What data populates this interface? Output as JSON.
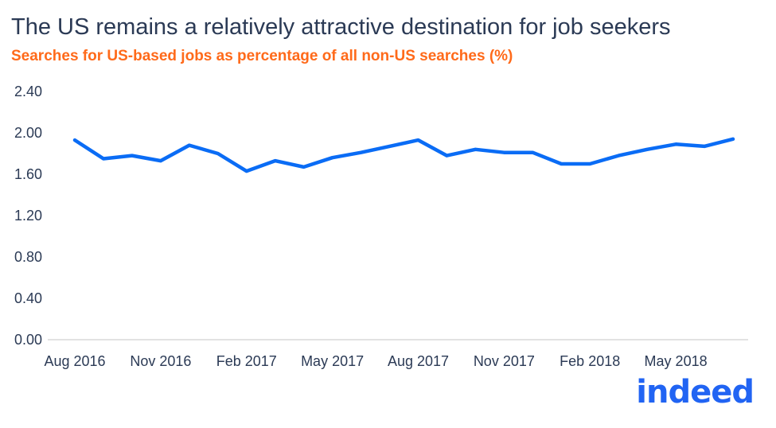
{
  "chart_data": {
    "type": "line",
    "title": "The US remains a relatively attractive destination for job seekers",
    "subtitle": "Searches for US-based jobs as percentage of all non-US searches (%)",
    "xlabel": "",
    "ylabel": "",
    "ylim": [
      0,
      2.4
    ],
    "yticks": [
      "0.00",
      "0.40",
      "0.80",
      "1.20",
      "1.60",
      "2.00",
      "2.40"
    ],
    "x": [
      "Aug 2016",
      "Sep 2016",
      "Oct 2016",
      "Nov 2016",
      "Dec 2016",
      "Jan 2017",
      "Feb 2017",
      "Mar 2017",
      "Apr 2017",
      "May 2017",
      "Jun 2017",
      "Jul 2017",
      "Aug 2017",
      "Sep 2017",
      "Oct 2017",
      "Nov 2017",
      "Dec 2017",
      "Jan 2018",
      "Feb 2018",
      "Mar 2018",
      "Apr 2018",
      "May 2018",
      "Jun 2018",
      "Jul 2018"
    ],
    "xtick_labels": [
      "Aug 2016",
      "Nov 2016",
      "Feb 2017",
      "May 2017",
      "Aug 2017",
      "Nov 2017",
      "Feb 2018",
      "May 2018"
    ],
    "series": [
      {
        "values": [
          1.93,
          1.75,
          1.78,
          1.73,
          1.88,
          1.8,
          1.63,
          1.73,
          1.67,
          1.76,
          1.81,
          1.87,
          1.93,
          1.78,
          1.84,
          1.81,
          1.81,
          1.7,
          1.7,
          1.78,
          1.84,
          1.89,
          1.87,
          1.94
        ],
        "color": "#0a6cf5"
      }
    ],
    "grid": false,
    "legend": "none"
  },
  "brand": {
    "logo_text": "indeed",
    "color": "#2164f3"
  }
}
